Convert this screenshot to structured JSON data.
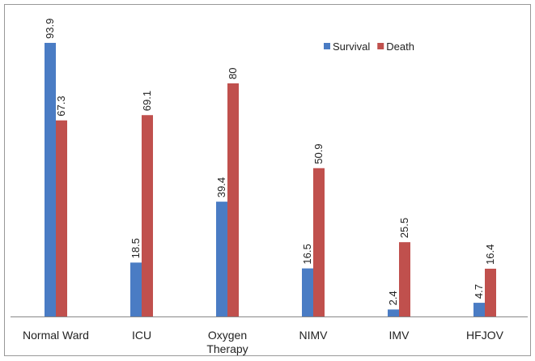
{
  "chart_data": {
    "type": "bar",
    "categories": [
      "Normal Ward",
      "ICU",
      "Oxygen Therapy",
      "NIMV",
      "IMV",
      "HFJOV"
    ],
    "series": [
      {
        "name": "Survival",
        "color": "#4a7cc4",
        "values": [
          93.9,
          18.5,
          39.4,
          16.5,
          2.4,
          4.7
        ]
      },
      {
        "name": "Death",
        "color": "#c0504d",
        "values": [
          67.3,
          69.1,
          80,
          50.9,
          25.5,
          16.4
        ]
      }
    ],
    "ylim": [
      0,
      100
    ],
    "legend": "top-right"
  }
}
